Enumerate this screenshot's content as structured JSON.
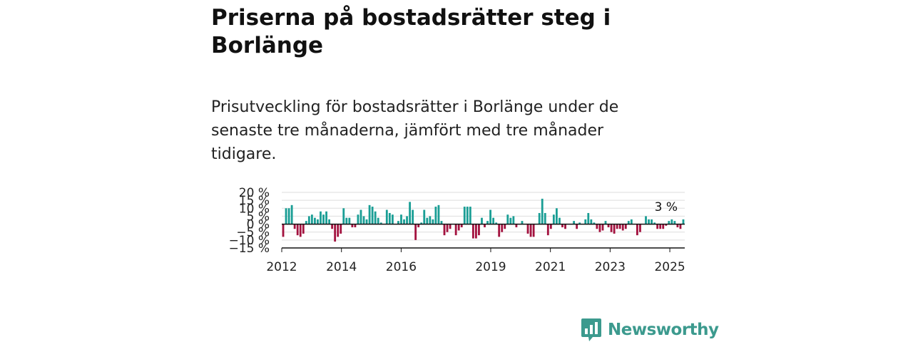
{
  "header": {
    "title": "Priserna på bostadsrätter steg i Borlänge",
    "subtitle": "Prisutveckling för bostadsrätter i Borlänge under de senaste tre månaderna, jämfört med tre månader tidigare."
  },
  "brand": {
    "name": "Newsworthy",
    "logo_icon": "newsworthy-bar-chart-icon"
  },
  "colors": {
    "positive": "#1a9e95",
    "negative": "#a3123f",
    "grid": "#dddddd",
    "axis": "#111111"
  },
  "chart_data": {
    "type": "bar",
    "title": "",
    "xlabel": "",
    "ylabel": "",
    "ylim": [
      -15,
      20
    ],
    "y_ticks": [
      20,
      15,
      10,
      5,
      0,
      -5,
      -10,
      -15
    ],
    "y_tick_labels": [
      "20 %",
      "15 %",
      "10 %",
      "5 %",
      "0 %",
      "−5 %",
      "−10 %",
      "−15 %"
    ],
    "x_ticks": [
      {
        "year": 2012,
        "label": "2012"
      },
      {
        "year": 2014,
        "label": "2014"
      },
      {
        "year": 2016,
        "label": "2016"
      },
      {
        "year": 2019,
        "label": "2019"
      },
      {
        "year": 2021,
        "label": "2021"
      },
      {
        "year": 2023,
        "label": "2023"
      },
      {
        "year": 2025,
        "label": "2025"
      }
    ],
    "start": "2012-01",
    "end": "2025-06",
    "annotation": {
      "label": "3 %",
      "value": 3
    },
    "grid": true,
    "values": [
      -8,
      10,
      10,
      12,
      -3,
      -7,
      -8,
      -6,
      2,
      5,
      6,
      4,
      3,
      8,
      6,
      8,
      3,
      -3,
      -11,
      -8,
      -6,
      10,
      4,
      4,
      -2,
      -2,
      6,
      9,
      5,
      3,
      12,
      11,
      8,
      4,
      1,
      0,
      9,
      7,
      6,
      0,
      2,
      6,
      3,
      5,
      14,
      9,
      -10,
      -2,
      1,
      9,
      4,
      5,
      3,
      11,
      12,
      2,
      -7,
      -5,
      -3,
      0,
      -7,
      -4,
      -2,
      11,
      11,
      11,
      -9,
      -9,
      -7,
      4,
      -2,
      2,
      9,
      4,
      1,
      -8,
      -5,
      -3,
      6,
      4,
      5,
      -2,
      0,
      2,
      0,
      -6,
      -8,
      -8,
      0,
      7,
      16,
      7,
      -7,
      -3,
      6,
      10,
      4,
      -2,
      -3,
      0,
      0,
      2,
      -3,
      1,
      0,
      3,
      7,
      3,
      1,
      -3,
      -5,
      -4,
      2,
      -2,
      -5,
      -6,
      -3,
      -3,
      -4,
      -3,
      2,
      3,
      0,
      -7,
      -5,
      0,
      5,
      3,
      3,
      1,
      -3,
      -3,
      -3,
      -1,
      2,
      3,
      2,
      -2,
      -3,
      3
    ]
  }
}
